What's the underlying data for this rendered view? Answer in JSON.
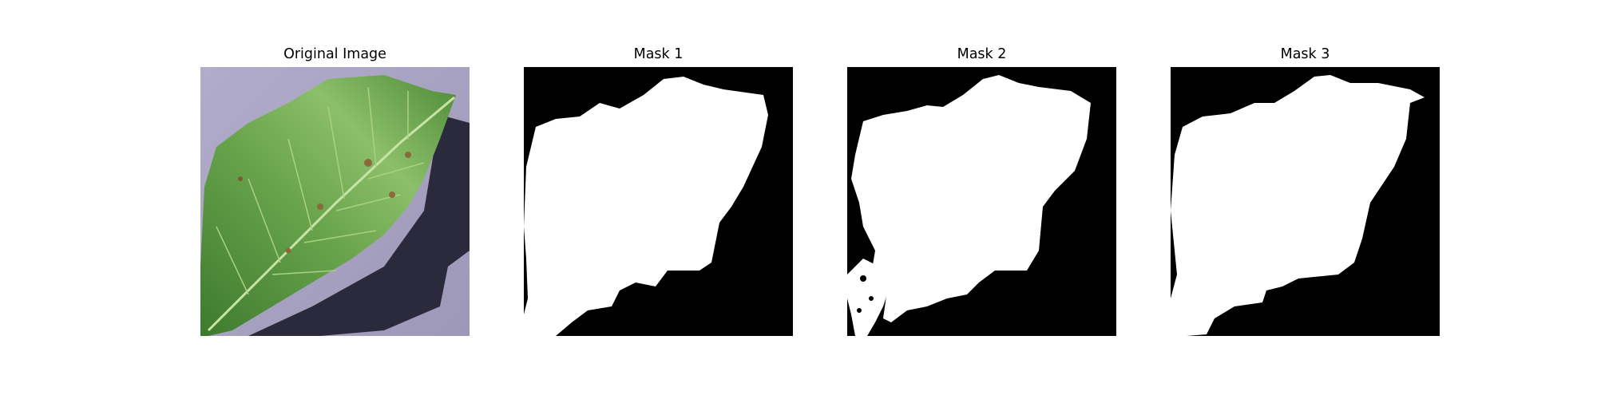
{
  "figure": {
    "panels": [
      {
        "title": "Original Image"
      },
      {
        "title": "Mask 1"
      },
      {
        "title": "Mask 2"
      },
      {
        "title": "Mask 3"
      }
    ]
  },
  "colors": {
    "background": "#ffffff",
    "mask_background": "#000000",
    "mask_foreground": "#ffffff",
    "leaf_green": "#4f8f3c",
    "surface_lavender": "#a9a4c4",
    "shadow": "#2b2a3c"
  }
}
